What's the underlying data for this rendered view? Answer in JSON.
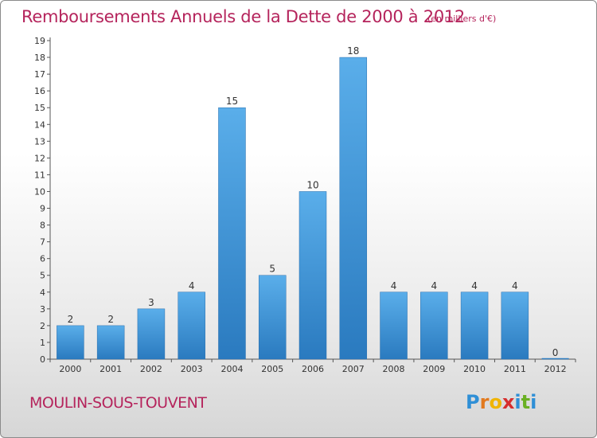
{
  "header": {
    "title": "Remboursements Annuels de la Dette de 2000 à 2012",
    "subtitle": "(en milliers d'€)"
  },
  "footer": {
    "town": "MOULIN-SOUS-TOUVENT",
    "logo": "Proxiti",
    "logo_letters": [
      "P",
      "r",
      "o",
      "x",
      "i",
      "t",
      "i"
    ],
    "logo_colors": [
      "#2f8fd6",
      "#e27a1f",
      "#f0b400",
      "#d62e2e",
      "#2f8fd6",
      "#6ab023",
      "#2f8fd6"
    ]
  },
  "chart_data": {
    "type": "bar",
    "categories": [
      "2000",
      "2001",
      "2002",
      "2003",
      "2004",
      "2005",
      "2006",
      "2007",
      "2008",
      "2009",
      "2010",
      "2011",
      "2012"
    ],
    "values": [
      2,
      2,
      3,
      4,
      15,
      5,
      10,
      18,
      4,
      4,
      4,
      4,
      0
    ],
    "data_labels": [
      "2",
      "2",
      "3",
      "4",
      "15",
      "5",
      "10",
      "18",
      "4",
      "4",
      "4",
      "4",
      "0"
    ],
    "y_ticks": [
      "0",
      "1",
      "2",
      "3",
      "4",
      "5",
      "6",
      "7",
      "8",
      "9",
      "10",
      "11",
      "12",
      "13",
      "14",
      "15",
      "16",
      "17",
      "18",
      "19"
    ],
    "ylim": [
      0,
      19
    ],
    "title": "Remboursements Annuels de la Dette de 2000 à 2012",
    "xlabel": "",
    "ylabel": "",
    "grid": false,
    "bar_color": "#4a9fe0",
    "bar_color_dark": "#2a7abf"
  }
}
